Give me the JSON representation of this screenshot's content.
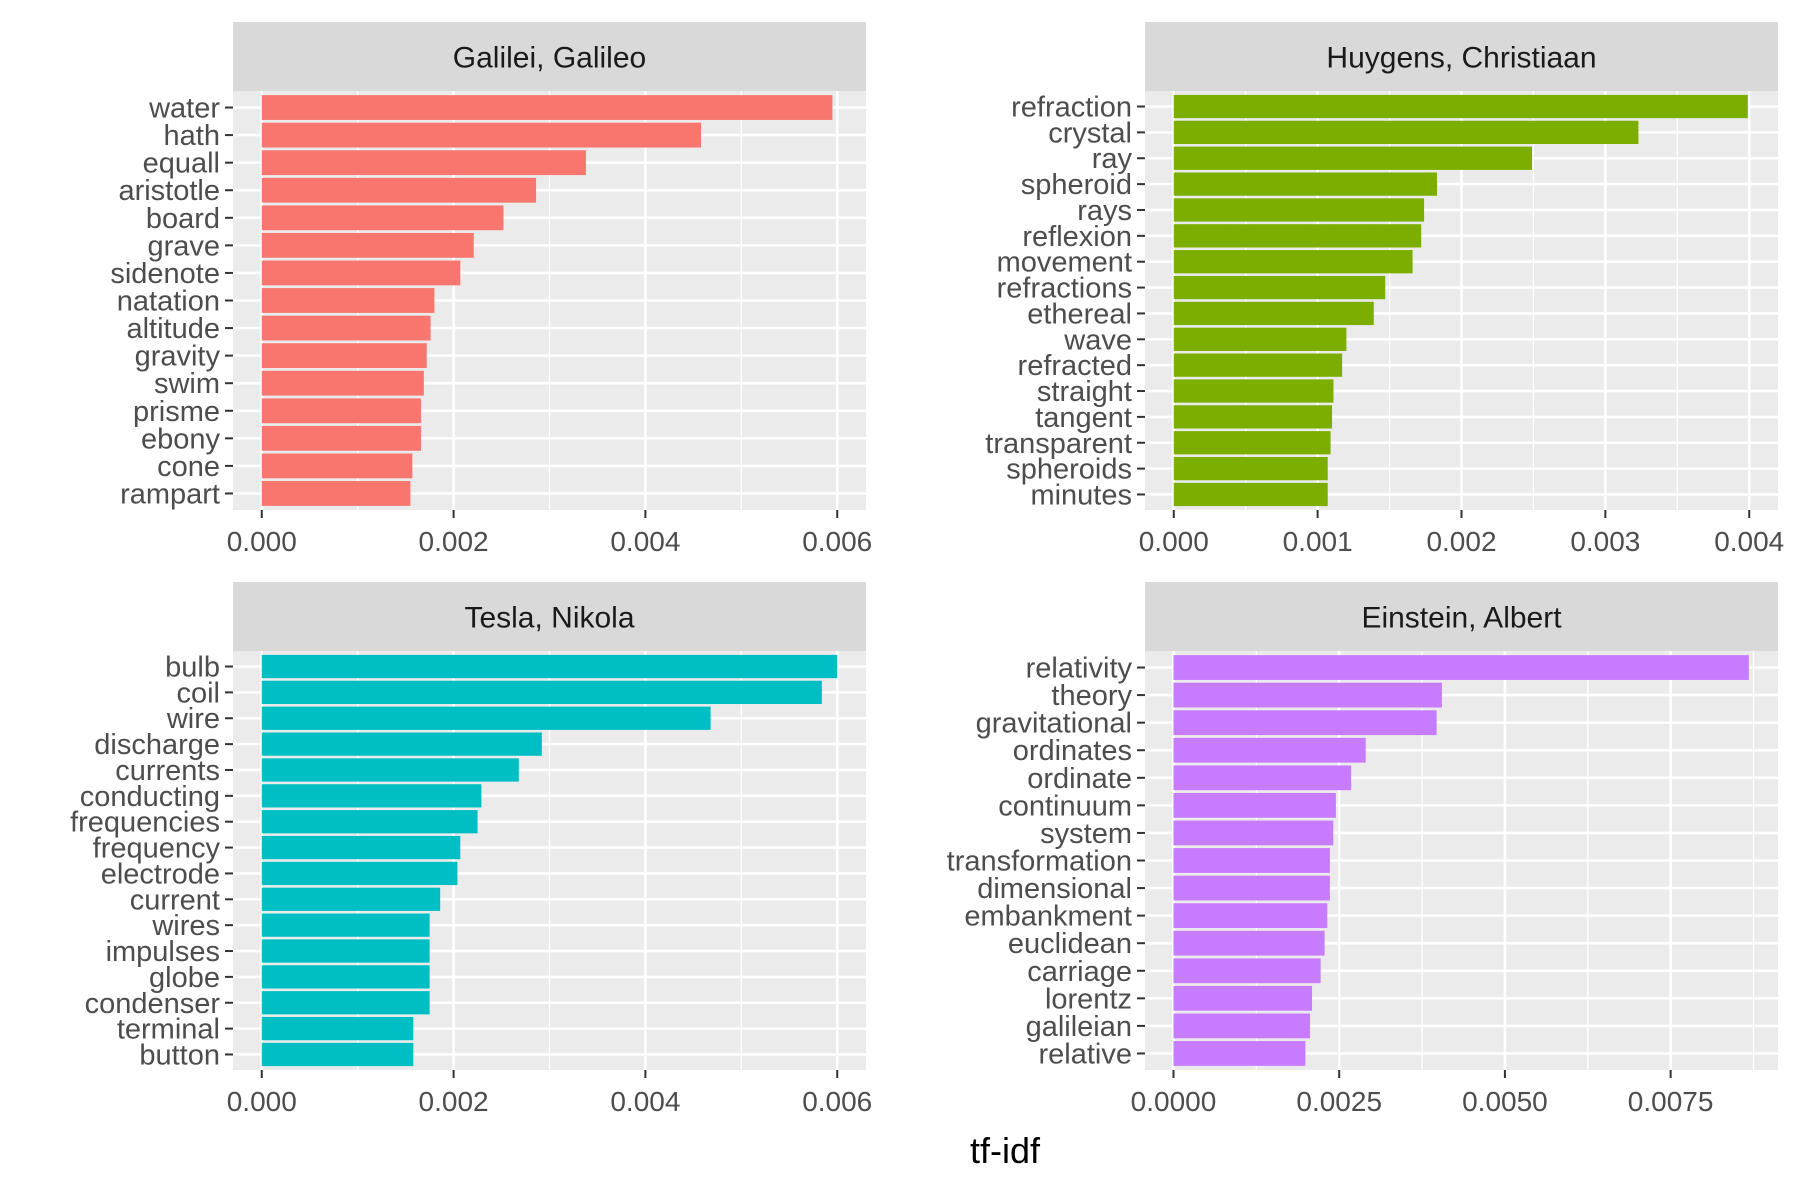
{
  "chart_data": [
    {
      "type": "bar",
      "orientation": "horizontal",
      "title": "Galilei, Galileo",
      "color": "#F8766D",
      "categories": [
        "water",
        "hath",
        "equall",
        "aristotle",
        "board",
        "grave",
        "sidenote",
        "natation",
        "altitude",
        "gravity",
        "swim",
        "prisme",
        "ebony",
        "cone",
        "rampart"
      ],
      "values": [
        0.00595,
        0.00458,
        0.00338,
        0.00286,
        0.00252,
        0.00221,
        0.00207,
        0.0018,
        0.00176,
        0.00172,
        0.00169,
        0.00166,
        0.00166,
        0.00157,
        0.00155
      ],
      "xlim": [
        -0.0003,
        0.0063
      ],
      "ticks": [
        0.0,
        0.002,
        0.004,
        0.006
      ],
      "tick_labels": [
        "0.000",
        "0.002",
        "0.004",
        "0.006"
      ],
      "grid": true
    },
    {
      "type": "bar",
      "orientation": "horizontal",
      "title": "Huygens, Christiaan",
      "color": "#7CAE00",
      "categories": [
        "refraction",
        "crystal",
        "ray",
        "spheroid",
        "rays",
        "reflexion",
        "movement",
        "refractions",
        "ethereal",
        "wave",
        "refracted",
        "straight",
        "tangent",
        "transparent",
        "spheroids",
        "minutes"
      ],
      "values": [
        0.00399,
        0.00323,
        0.00249,
        0.00183,
        0.00174,
        0.00172,
        0.00166,
        0.00147,
        0.00139,
        0.0012,
        0.00117,
        0.00111,
        0.0011,
        0.00109,
        0.00107,
        0.00107
      ],
      "xlim": [
        -0.0002,
        0.0042
      ],
      "ticks": [
        0.0,
        0.001,
        0.002,
        0.003,
        0.004
      ],
      "tick_labels": [
        "0.000",
        "0.001",
        "0.002",
        "0.003",
        "0.004"
      ],
      "grid": true
    },
    {
      "type": "bar",
      "orientation": "horizontal",
      "title": "Tesla, Nikola",
      "color": "#00BFC4",
      "categories": [
        "bulb",
        "coil",
        "wire",
        "discharge",
        "currents",
        "conducting",
        "frequencies",
        "frequency",
        "electrode",
        "current",
        "wires",
        "impulses",
        "globe",
        "condenser",
        "terminal",
        "button"
      ],
      "values": [
        0.006,
        0.00584,
        0.00468,
        0.00292,
        0.00268,
        0.00229,
        0.00225,
        0.00207,
        0.00204,
        0.00186,
        0.00175,
        0.00175,
        0.00175,
        0.00175,
        0.00158,
        0.00158
      ],
      "xlim": [
        -0.0003,
        0.0063
      ],
      "ticks": [
        0.0,
        0.002,
        0.004,
        0.006
      ],
      "tick_labels": [
        "0.000",
        "0.002",
        "0.004",
        "0.006"
      ],
      "grid": true
    },
    {
      "type": "bar",
      "orientation": "horizontal",
      "title": "Einstein, Albert",
      "color": "#C77CFF",
      "categories": [
        "relativity",
        "theory",
        "gravitational",
        "ordinates",
        "ordinate",
        "continuum",
        "system",
        "transformation",
        "dimensional",
        "embankment",
        "euclidean",
        "carriage",
        "lorentz",
        "galileian",
        "relative"
      ],
      "values": [
        0.00868,
        0.00405,
        0.00397,
        0.0029,
        0.00268,
        0.00245,
        0.00241,
        0.00236,
        0.00236,
        0.00232,
        0.00228,
        0.00222,
        0.00209,
        0.00206,
        0.00199
      ],
      "xlim": [
        -0.00043,
        0.00912
      ],
      "ticks": [
        0.0,
        0.0025,
        0.005,
        0.0075
      ],
      "tick_labels": [
        "0.0000",
        "0.0025",
        "0.0050",
        "0.0075"
      ],
      "grid": true
    }
  ],
  "xlabel": "tf-idf",
  "colors": {
    "panel_background": "#EBEBEB",
    "grid_line": "#FFFFFF",
    "strip_background": "#D9D9D9",
    "tick_color": "#333333"
  }
}
